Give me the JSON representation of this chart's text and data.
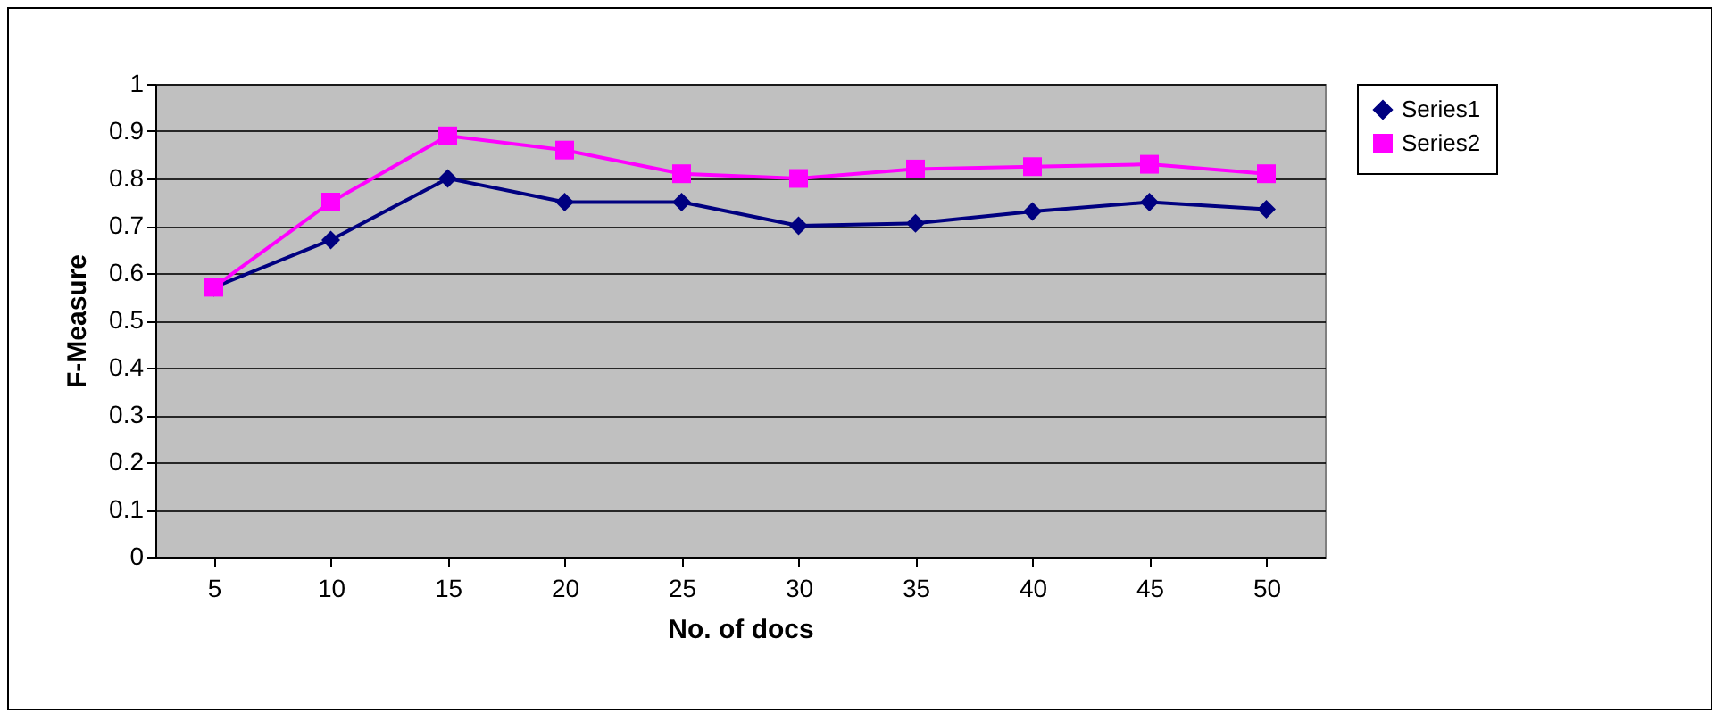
{
  "chart_data": {
    "type": "line",
    "xlabel": "No. of docs",
    "ylabel": "F-Measure",
    "categories": [
      "5",
      "10",
      "15",
      "20",
      "25",
      "30",
      "35",
      "40",
      "45",
      "50"
    ],
    "series": [
      {
        "name": "Series1",
        "color": "#000080",
        "marker": "diamond",
        "values": [
          0.57,
          0.67,
          0.8,
          0.75,
          0.75,
          0.7,
          0.705,
          0.73,
          0.75,
          0.735
        ]
      },
      {
        "name": "Series2",
        "color": "#ff00ff",
        "marker": "square",
        "values": [
          0.57,
          0.75,
          0.89,
          0.86,
          0.81,
          0.8,
          0.82,
          0.825,
          0.83,
          0.81
        ]
      }
    ],
    "ylim": [
      0,
      1
    ],
    "yticks": [
      0,
      0.1,
      0.2,
      0.3,
      0.4,
      0.5,
      0.6,
      0.7,
      0.8,
      0.9,
      1
    ],
    "grid": "y",
    "legend": "right",
    "line_style": "solid"
  }
}
